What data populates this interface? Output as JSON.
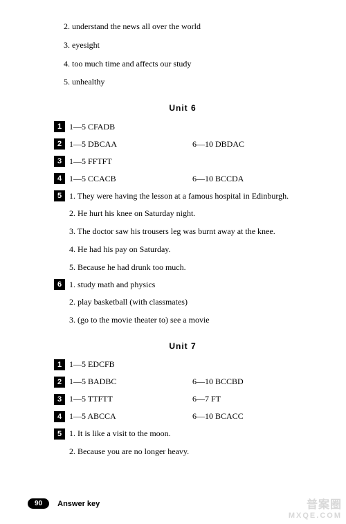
{
  "top": {
    "items": [
      "2. understand the news all over the world",
      "3. eyesight",
      "4. too much time and affects our study",
      "5. unhealthy"
    ]
  },
  "unit6": {
    "title": "Unit 6",
    "rows": [
      {
        "num": "1",
        "col1": "1—5 CFADB",
        "col2": ""
      },
      {
        "num": "2",
        "col1": "1—5 DBCAA",
        "col2": "6—10 DBDAC"
      },
      {
        "num": "3",
        "col1": "1—5 FFTFT",
        "col2": ""
      },
      {
        "num": "4",
        "col1": "1—5 CCACB",
        "col2": "6—10 BCCDA"
      }
    ],
    "block5": {
      "num": "5",
      "first": "1. They were having the lesson at a famous hospital in Edinburgh.",
      "rest": [
        "2. He hurt his knee on Saturday night.",
        "3. The doctor saw his trousers leg was burnt away at the knee.",
        "4. He had his pay on Saturday.",
        "5. Because he had drunk too much."
      ]
    },
    "block6": {
      "num": "6",
      "first": "1.  study math and physics",
      "rest": [
        "2. play basketball (with classmates)",
        "3. (go to the movie theater to) see a movie"
      ]
    }
  },
  "unit7": {
    "title": "Unit 7",
    "rows": [
      {
        "num": "1",
        "col1": "1—5 EDCFB",
        "col2": ""
      },
      {
        "num": "2",
        "col1": "1—5 BADBC",
        "col2": "6—10 BCCBD"
      },
      {
        "num": "3",
        "col1": "1—5 TTFTT",
        "col2": "6—7 FT"
      },
      {
        "num": "4",
        "col1": "1—5 ABCCA",
        "col2": "6—10 BCACC"
      }
    ],
    "block5": {
      "num": "5",
      "first": "1. It is like a visit to the moon.",
      "rest": [
        "2. Because you are no longer heavy."
      ]
    }
  },
  "footer": {
    "page": "90",
    "label": "Answer key"
  },
  "watermark": {
    "top": "普案圈",
    "bot": "MXQE.COM"
  }
}
